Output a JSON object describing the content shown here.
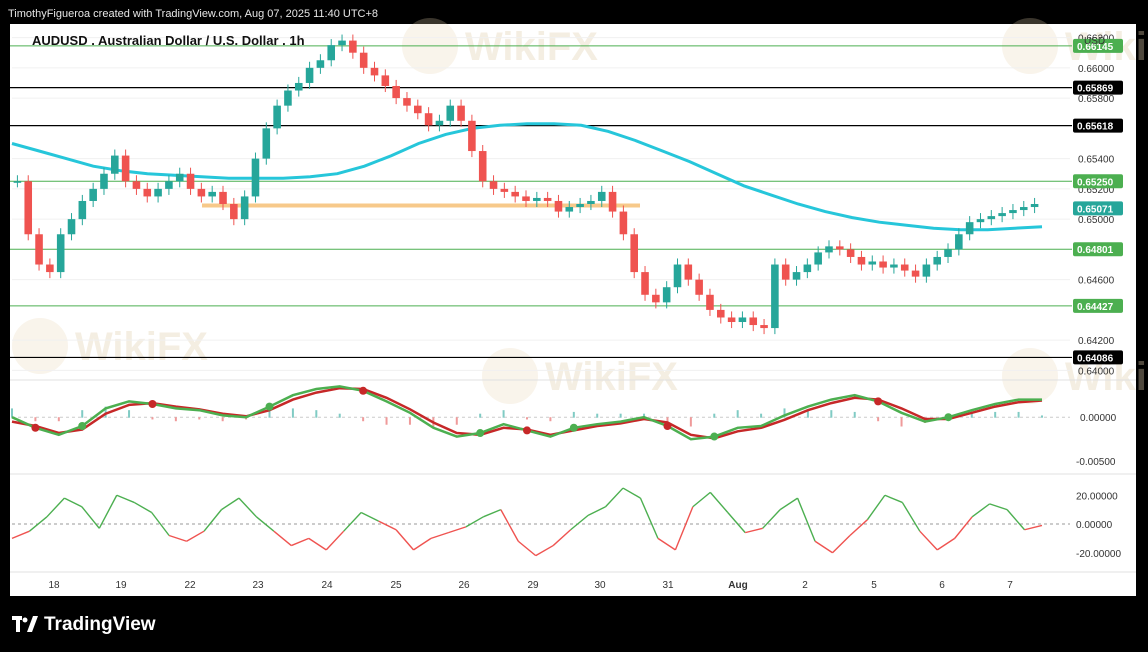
{
  "header": {
    "credit": "TimothyFigueroa created with TradingView.com, Aug 07, 2025 11:40 UTC+8"
  },
  "branding": {
    "logo_text": "TradingView",
    "watermark": "WikiFX"
  },
  "chart_data": {
    "type": "candlestick",
    "title": "AUDUSD . Australian Dollar / U.S. Dollar . 1h",
    "currency": "USD",
    "x_tick_labels": [
      "18",
      "19",
      "22",
      "23",
      "24",
      "25",
      "26",
      "29",
      "30",
      "31",
      "Aug",
      "2",
      "5",
      "6",
      "7"
    ],
    "price_axis": {
      "ylim": [
        0.6395,
        0.6625
      ],
      "tick_labels": [
        "0.66200",
        "0.66000",
        "0.65800",
        "0.65400",
        "0.65200",
        "0.65000",
        "0.64600",
        "0.64200",
        "0.64000"
      ],
      "tick_values": [
        0.662,
        0.66,
        0.658,
        0.654,
        0.652,
        0.65,
        0.646,
        0.642,
        0.64
      ]
    },
    "key_levels": [
      {
        "label": "0.66145",
        "value": 0.66145,
        "color": "#4caf50"
      },
      {
        "label": "0.65869",
        "value": 0.65869,
        "color": "#000000"
      },
      {
        "label": "0.65618",
        "value": 0.65618,
        "color": "#000000"
      },
      {
        "label": "0.65250",
        "value": 0.6525,
        "color": "#4caf50"
      },
      {
        "label": "0.65071",
        "value": 0.65071,
        "color": "#26a69a"
      },
      {
        "label": "0.64801",
        "value": 0.64801,
        "color": "#4caf50"
      },
      {
        "label": "0.64427",
        "value": 0.64427,
        "color": "#4caf50"
      },
      {
        "label": "0.64086",
        "value": 0.64086,
        "color": "#000000"
      }
    ],
    "highlight_zone": {
      "value": 0.6509,
      "color": "#f7c98a"
    },
    "price_series": [
      {
        "name": "AUDUSD close (approx.)",
        "color_up": "#26a69a",
        "color_down": "#ef5350",
        "values": [
          0.6525,
          0.649,
          0.647,
          0.6465,
          0.649,
          0.65,
          0.6512,
          0.652,
          0.653,
          0.6542,
          0.6525,
          0.652,
          0.6515,
          0.652,
          0.6525,
          0.653,
          0.652,
          0.6515,
          0.6518,
          0.651,
          0.65,
          0.6515,
          0.654,
          0.656,
          0.6575,
          0.6585,
          0.659,
          0.66,
          0.6605,
          0.6615,
          0.6618,
          0.661,
          0.66,
          0.6595,
          0.6588,
          0.658,
          0.6575,
          0.657,
          0.6562,
          0.6565,
          0.6575,
          0.6565,
          0.6545,
          0.6525,
          0.652,
          0.6518,
          0.6515,
          0.6512,
          0.6514,
          0.6512,
          0.6505,
          0.6508,
          0.651,
          0.6512,
          0.6518,
          0.6505,
          0.649,
          0.6465,
          0.645,
          0.6445,
          0.6455,
          0.647,
          0.646,
          0.645,
          0.644,
          0.6435,
          0.6432,
          0.6435,
          0.643,
          0.6428,
          0.647,
          0.646,
          0.6465,
          0.647,
          0.6478,
          0.6482,
          0.648,
          0.6475,
          0.647,
          0.6472,
          0.6468,
          0.647,
          0.6466,
          0.6462,
          0.647,
          0.6475,
          0.648,
          0.649,
          0.6498,
          0.65,
          0.6502,
          0.6504,
          0.6506,
          0.6508,
          0.651
        ]
      }
    ],
    "moving_average": {
      "name": "MA",
      "color": "#26c6da",
      "values": [
        0.655,
        0.6545,
        0.654,
        0.6535,
        0.6532,
        0.653,
        0.6529,
        0.6528,
        0.6527,
        0.6527,
        0.6527,
        0.6528,
        0.653,
        0.6535,
        0.6542,
        0.655,
        0.6556,
        0.656,
        0.6562,
        0.6563,
        0.6563,
        0.6562,
        0.6558,
        0.6552,
        0.6545,
        0.6538,
        0.653,
        0.6522,
        0.6516,
        0.651,
        0.6505,
        0.6501,
        0.6498,
        0.6496,
        0.6494,
        0.6493,
        0.6493,
        0.6494,
        0.6495
      ]
    },
    "oscillator_1": {
      "tick_labels": [
        "0.00000",
        "-0.00500"
      ],
      "ylim": [
        -0.006,
        0.004
      ],
      "series": [
        {
          "name": "fast",
          "color": "#4caf50",
          "values": [
            0.0,
            -0.0012,
            -0.002,
            -0.001,
            0.001,
            0.0018,
            0.0015,
            0.001,
            0.0008,
            0.0002,
            0.0,
            0.0012,
            0.0025,
            0.0032,
            0.0035,
            0.003,
            0.0018,
            0.0005,
            -0.0012,
            -0.0022,
            -0.0018,
            -0.0008,
            -0.0015,
            -0.0022,
            -0.0012,
            -0.0008,
            -0.0005,
            0.0,
            -0.001,
            -0.0025,
            -0.0022,
            -0.0012,
            -0.001,
            0.0002,
            0.0012,
            0.002,
            0.0025,
            0.0018,
            0.0005,
            -0.0005,
            0.0,
            0.0008,
            0.0015,
            0.002,
            0.002
          ]
        },
        {
          "name": "slow",
          "color": "#c62828",
          "values": [
            -0.0005,
            -0.001,
            -0.0018,
            -0.0014,
            0.0004,
            0.0014,
            0.0016,
            0.0012,
            0.0009,
            0.0004,
            0.0001,
            0.0008,
            0.002,
            0.0028,
            0.0033,
            0.0032,
            0.0022,
            0.0009,
            -0.0006,
            -0.0018,
            -0.002,
            -0.0012,
            -0.0014,
            -0.002,
            -0.0015,
            -0.001,
            -0.0007,
            -0.0002,
            -0.0006,
            -0.002,
            -0.0024,
            -0.0016,
            -0.0012,
            -0.0003,
            0.0008,
            0.0016,
            0.0022,
            0.002,
            0.001,
            -0.0002,
            -0.0002,
            0.0005,
            0.0012,
            0.0017,
            0.0019
          ]
        }
      ]
    },
    "oscillator_2": {
      "tick_labels": [
        "20.00000",
        "0.00000",
        "-20.00000"
      ],
      "tick_values": [
        20,
        0,
        -20
      ],
      "ylim": [
        -32,
        32
      ],
      "series": [
        {
          "name": "momentum",
          "color_pos": "#4caf50",
          "color_neg": "#ef5350",
          "values": [
            -10,
            -5,
            5,
            18,
            12,
            -3,
            20,
            15,
            8,
            -8,
            -12,
            -5,
            10,
            18,
            5,
            -5,
            -15,
            -10,
            -18,
            -5,
            8,
            2,
            -4,
            -18,
            -10,
            -6,
            -2,
            5,
            10,
            -12,
            -22,
            -15,
            -4,
            6,
            12,
            25,
            18,
            -10,
            -18,
            12,
            22,
            8,
            -6,
            -3,
            10,
            18,
            -12,
            -20,
            -8,
            3,
            20,
            15,
            -5,
            -18,
            -10,
            5,
            14,
            10,
            -4,
            -1
          ]
        }
      ]
    }
  }
}
